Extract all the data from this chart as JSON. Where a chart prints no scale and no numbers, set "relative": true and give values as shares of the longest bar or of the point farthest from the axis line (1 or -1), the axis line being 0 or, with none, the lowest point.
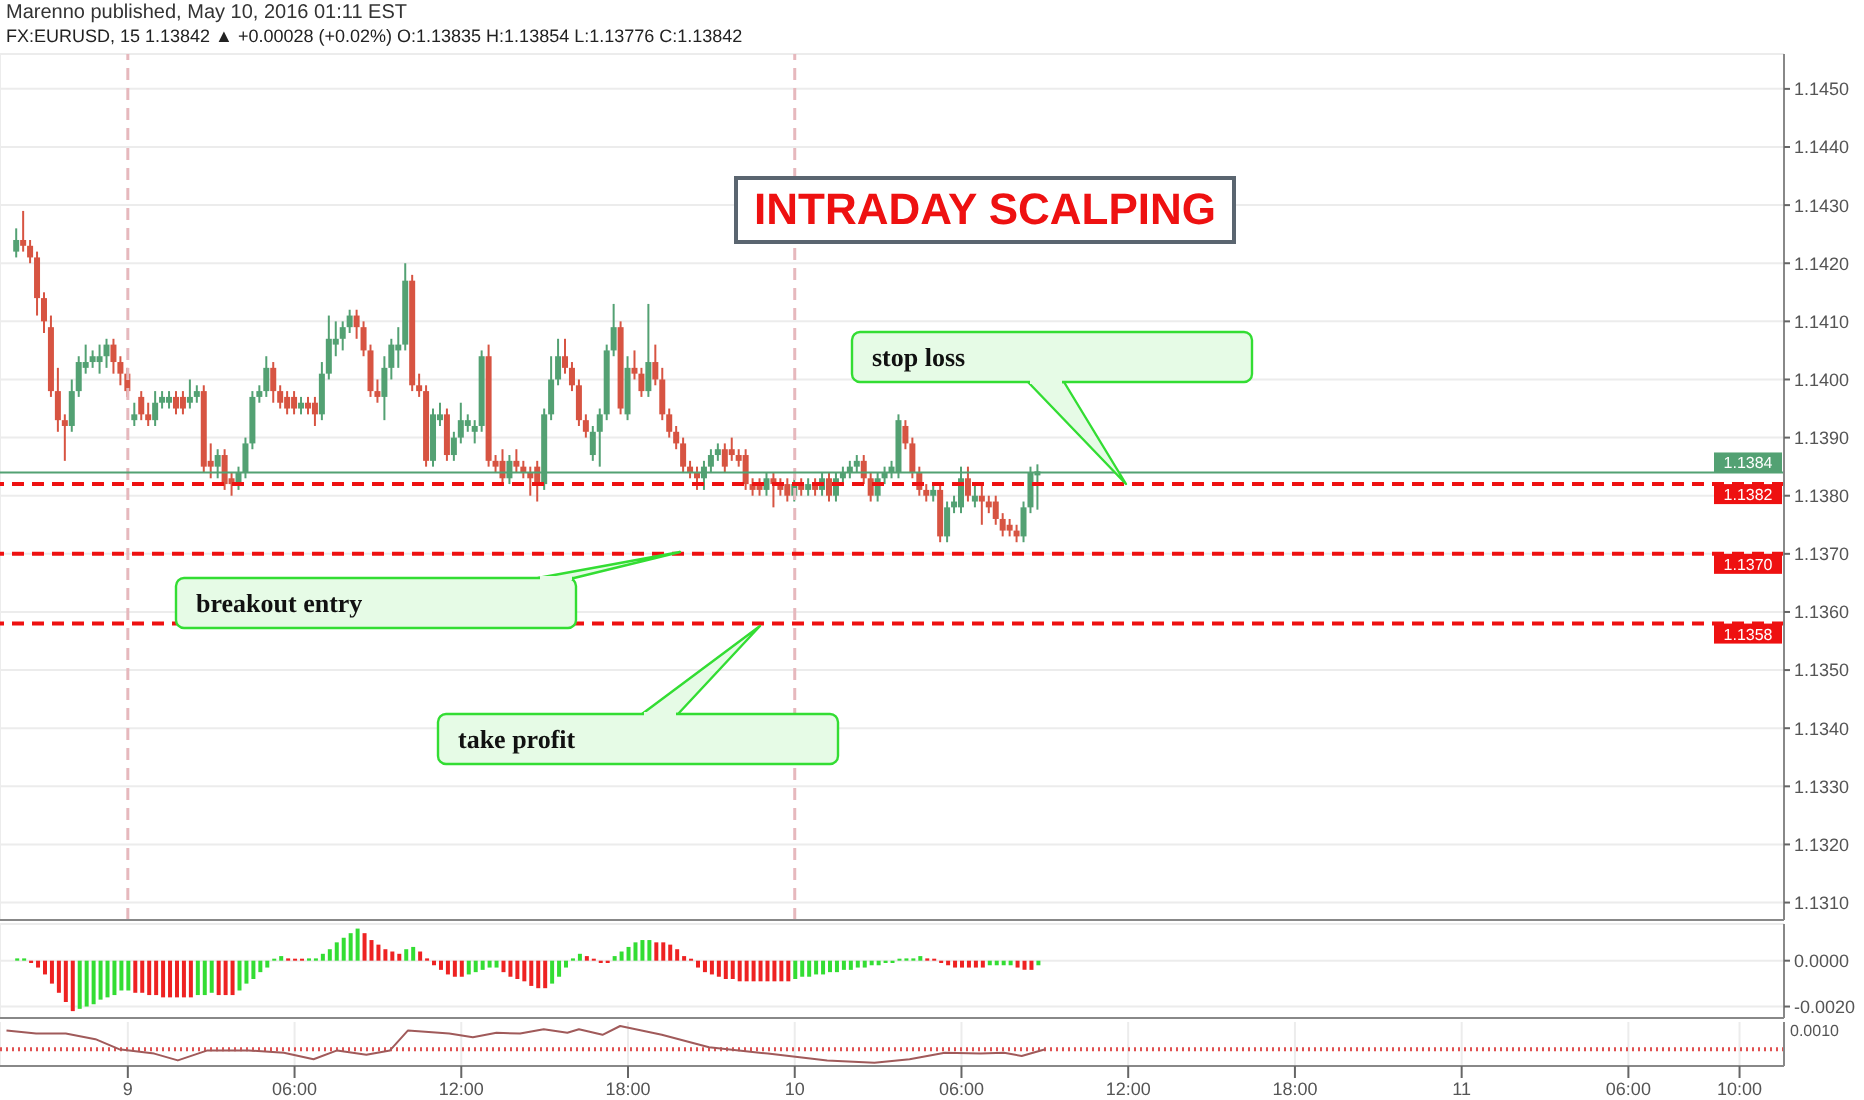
{
  "chart_data": [
    {
      "type": "candlestick",
      "title": "INTRADAY SCALPING",
      "subtitle": "FX:EURUSD, 15 1.13842 ▲ +0.00028 (+0.02%) O:1.13835 H:1.13854 L:1.13776 C:1.13842",
      "annotations": [
        "Marenno published, May 10, 2016 01:11 EST",
        "stop loss",
        "breakout entry",
        "take profit"
      ],
      "x": [
        "2016-05-08T20:00",
        "2016-05-08T20:15",
        "2016-05-08T20:30",
        "2016-05-08T20:45",
        "2016-05-08T21:00",
        "2016-05-08T21:15",
        "2016-05-08T21:30",
        "2016-05-08T21:45",
        "2016-05-08T22:00",
        "2016-05-08T22:15",
        "2016-05-08T22:30",
        "2016-05-08T22:45",
        "2016-05-08T23:00",
        "2016-05-08T23:15",
        "2016-05-08T23:30",
        "2016-05-08T23:45",
        "2016-05-09T00:00",
        "2016-05-09T00:15",
        "2016-05-09T00:30",
        "2016-05-09T00:45",
        "2016-05-09T01:00",
        "2016-05-09T01:15",
        "2016-05-09T01:30",
        "2016-05-09T01:45",
        "2016-05-09T02:00",
        "2016-05-09T02:15",
        "2016-05-09T02:30",
        "2016-05-09T02:45",
        "2016-05-09T03:00",
        "2016-05-09T03:15",
        "2016-05-09T03:30",
        "2016-05-09T03:45",
        "2016-05-09T04:00",
        "2016-05-09T04:15",
        "2016-05-09T04:30",
        "2016-05-09T04:45",
        "2016-05-09T05:00",
        "2016-05-09T05:15",
        "2016-05-09T05:30",
        "2016-05-09T05:45",
        "2016-05-09T06:00",
        "2016-05-09T06:15",
        "2016-05-09T06:30",
        "2016-05-09T06:45",
        "2016-05-09T07:00",
        "2016-05-09T07:15",
        "2016-05-09T07:30",
        "2016-05-09T07:45",
        "2016-05-09T08:00",
        "2016-05-09T08:15",
        "2016-05-09T08:30",
        "2016-05-09T08:45",
        "2016-05-09T09:00",
        "2016-05-09T09:15",
        "2016-05-09T09:30",
        "2016-05-09T09:45",
        "2016-05-09T10:00",
        "2016-05-09T10:15",
        "2016-05-09T10:30",
        "2016-05-09T10:45",
        "2016-05-09T11:00",
        "2016-05-09T11:15",
        "2016-05-09T11:30",
        "2016-05-09T11:45",
        "2016-05-09T12:00",
        "2016-05-09T12:15",
        "2016-05-09T12:30",
        "2016-05-09T12:45",
        "2016-05-09T13:00",
        "2016-05-09T13:15",
        "2016-05-09T13:30",
        "2016-05-09T13:45",
        "2016-05-09T14:00",
        "2016-05-09T14:15",
        "2016-05-09T14:30",
        "2016-05-09T14:45",
        "2016-05-09T15:00",
        "2016-05-09T15:15",
        "2016-05-09T15:30",
        "2016-05-09T15:45",
        "2016-05-09T16:00",
        "2016-05-09T16:15",
        "2016-05-09T16:30",
        "2016-05-09T16:45",
        "2016-05-09T17:00",
        "2016-05-09T17:15",
        "2016-05-09T17:30",
        "2016-05-09T17:45",
        "2016-05-09T18:00",
        "2016-05-09T18:15",
        "2016-05-09T18:30",
        "2016-05-09T18:45",
        "2016-05-09T19:00",
        "2016-05-09T19:15",
        "2016-05-09T19:30",
        "2016-05-09T19:45",
        "2016-05-09T20:00",
        "2016-05-09T20:15",
        "2016-05-09T20:30",
        "2016-05-09T20:45",
        "2016-05-09T21:00",
        "2016-05-09T21:15",
        "2016-05-09T21:30",
        "2016-05-09T21:45",
        "2016-05-09T22:00",
        "2016-05-09T22:15",
        "2016-05-09T22:30",
        "2016-05-09T22:45",
        "2016-05-09T23:00",
        "2016-05-09T23:15",
        "2016-05-09T23:30",
        "2016-05-09T23:45",
        "2016-05-10T00:00",
        "2016-05-10T00:15",
        "2016-05-10T00:30",
        "2016-05-10T00:45",
        "2016-05-10T01:00",
        "2016-05-10T01:15",
        "2016-05-10T01:30",
        "2016-05-10T01:45",
        "2016-05-10T02:00",
        "2016-05-10T02:15",
        "2016-05-10T02:30",
        "2016-05-10T02:45",
        "2016-05-10T03:00",
        "2016-05-10T03:15",
        "2016-05-10T03:30",
        "2016-05-10T03:45",
        "2016-05-10T04:00",
        "2016-05-10T04:15",
        "2016-05-10T04:30",
        "2016-05-10T04:45",
        "2016-05-10T05:00",
        "2016-05-10T05:15",
        "2016-05-10T05:30",
        "2016-05-10T05:45",
        "2016-05-10T06:00",
        "2016-05-10T06:15",
        "2016-05-10T06:30",
        "2016-05-10T06:45",
        "2016-05-10T07:00",
        "2016-05-10T07:15",
        "2016-05-10T07:30",
        "2016-05-10T07:45",
        "2016-05-10T08:00",
        "2016-05-10T08:15",
        "2016-05-10T08:30",
        "2016-05-10T08:45"
      ],
      "ohlc": [
        [
          1.1422,
          1.1426,
          1.1421,
          1.1424
        ],
        [
          1.1424,
          1.1429,
          1.1422,
          1.1423
        ],
        [
          1.1423,
          1.1424,
          1.142,
          1.1421
        ],
        [
          1.1421,
          1.1422,
          1.1411,
          1.1414
        ],
        [
          1.1414,
          1.1415,
          1.1408,
          1.141
        ],
        [
          1.1409,
          1.1411,
          1.1397,
          1.1398
        ],
        [
          1.1398,
          1.1402,
          1.1391,
          1.1393
        ],
        [
          1.1393,
          1.1394,
          1.1386,
          1.1392
        ],
        [
          1.1392,
          1.14,
          1.1391,
          1.1398
        ],
        [
          1.1398,
          1.1404,
          1.1397,
          1.1403
        ],
        [
          1.1402,
          1.1406,
          1.1401,
          1.1403
        ],
        [
          1.1403,
          1.1405,
          1.1402,
          1.1404
        ],
        [
          1.1403,
          1.1406,
          1.1401,
          1.1404
        ],
        [
          1.1404,
          1.1407,
          1.1402,
          1.1406
        ],
        [
          1.1406,
          1.1407,
          1.1401,
          1.1403
        ],
        [
          1.1403,
          1.1404,
          1.1399,
          1.1401
        ],
        [
          1.1401,
          1.1402,
          1.1397,
          1.1398
        ],
        [
          1.1393,
          1.1396,
          1.1392,
          1.1394
        ],
        [
          1.1397,
          1.1398,
          1.1393,
          1.1394
        ],
        [
          1.1394,
          1.1396,
          1.1392,
          1.1393
        ],
        [
          1.1393,
          1.1398,
          1.1392,
          1.1396
        ],
        [
          1.1396,
          1.1398,
          1.1395,
          1.1397
        ],
        [
          1.1396,
          1.1398,
          1.1395,
          1.1397
        ],
        [
          1.1397,
          1.1398,
          1.1394,
          1.1395
        ],
        [
          1.1397,
          1.1398,
          1.1394,
          1.1395
        ],
        [
          1.1396,
          1.14,
          1.1395,
          1.1397
        ],
        [
          1.1397,
          1.1399,
          1.1396,
          1.1398
        ],
        [
          1.1398,
          1.1399,
          1.1384,
          1.1385
        ],
        [
          1.1386,
          1.1389,
          1.1383,
          1.1385
        ],
        [
          1.1385,
          1.1388,
          1.1383,
          1.1387
        ],
        [
          1.1387,
          1.1388,
          1.1381,
          1.1382
        ],
        [
          1.1383,
          1.1384,
          1.138,
          1.1382
        ],
        [
          1.1382,
          1.1385,
          1.1381,
          1.1384
        ],
        [
          1.1384,
          1.139,
          1.1383,
          1.1389
        ],
        [
          1.1389,
          1.1398,
          1.1388,
          1.1397
        ],
        [
          1.1397,
          1.1399,
          1.1396,
          1.1398
        ],
        [
          1.1398,
          1.1404,
          1.1397,
          1.1402
        ],
        [
          1.1402,
          1.1403,
          1.1396,
          1.1398
        ],
        [
          1.1398,
          1.1399,
          1.1395,
          1.1396
        ],
        [
          1.1397,
          1.1398,
          1.1394,
          1.1395
        ],
        [
          1.1397,
          1.1398,
          1.1394,
          1.1395
        ],
        [
          1.1395,
          1.1397,
          1.1394,
          1.1396
        ],
        [
          1.1396,
          1.1397,
          1.1394,
          1.1395
        ],
        [
          1.1396,
          1.1397,
          1.1392,
          1.1394
        ],
        [
          1.1394,
          1.1403,
          1.1393,
          1.1401
        ],
        [
          1.1401,
          1.1411,
          1.14,
          1.1407
        ],
        [
          1.1406,
          1.141,
          1.1404,
          1.1407
        ],
        [
          1.1407,
          1.141,
          1.1405,
          1.1409
        ],
        [
          1.1409,
          1.1412,
          1.1408,
          1.1411
        ],
        [
          1.1411,
          1.1412,
          1.1407,
          1.1409
        ],
        [
          1.1409,
          1.141,
          1.1404,
          1.1405
        ],
        [
          1.1405,
          1.1406,
          1.1397,
          1.1398
        ],
        [
          1.1398,
          1.14,
          1.1396,
          1.1397
        ],
        [
          1.1397,
          1.1404,
          1.1393,
          1.1402
        ],
        [
          1.1402,
          1.1407,
          1.14,
          1.1406
        ],
        [
          1.1405,
          1.1409,
          1.1402,
          1.1406
        ],
        [
          1.1406,
          1.142,
          1.1405,
          1.1417
        ],
        [
          1.1417,
          1.1418,
          1.1398,
          1.1399
        ],
        [
          1.1399,
          1.1401,
          1.1397,
          1.1398
        ],
        [
          1.1398,
          1.1399,
          1.1385,
          1.1386
        ],
        [
          1.1386,
          1.1395,
          1.1385,
          1.1394
        ],
        [
          1.1393,
          1.1396,
          1.1392,
          1.1394
        ],
        [
          1.1394,
          1.1395,
          1.1386,
          1.1387
        ],
        [
          1.1387,
          1.1391,
          1.1386,
          1.139
        ],
        [
          1.139,
          1.1396,
          1.1389,
          1.1393
        ],
        [
          1.1392,
          1.1394,
          1.1391,
          1.1393
        ],
        [
          1.1391,
          1.1393,
          1.1389,
          1.1392
        ],
        [
          1.1392,
          1.1405,
          1.1391,
          1.1404
        ],
        [
          1.1404,
          1.1406,
          1.1385,
          1.1386
        ],
        [
          1.1386,
          1.1387,
          1.1384,
          1.1385
        ],
        [
          1.1386,
          1.1388,
          1.1382,
          1.1383
        ],
        [
          1.1383,
          1.1387,
          1.1382,
          1.1386
        ],
        [
          1.1386,
          1.1388,
          1.1384,
          1.1385
        ],
        [
          1.1385,
          1.1386,
          1.1383,
          1.1384
        ],
        [
          1.1384,
          1.1385,
          1.138,
          1.1383
        ],
        [
          1.1385,
          1.1386,
          1.1379,
          1.1382
        ],
        [
          1.1382,
          1.1395,
          1.1381,
          1.1394
        ],
        [
          1.1394,
          1.1404,
          1.1393,
          1.14
        ],
        [
          1.14,
          1.1407,
          1.1399,
          1.1404
        ],
        [
          1.1404,
          1.1407,
          1.1401,
          1.1402
        ],
        [
          1.1402,
          1.1403,
          1.1398,
          1.1399
        ],
        [
          1.1399,
          1.14,
          1.1392,
          1.1393
        ],
        [
          1.1393,
          1.1394,
          1.139,
          1.1391
        ],
        [
          1.1387,
          1.1392,
          1.1386,
          1.1391
        ],
        [
          1.1391,
          1.1395,
          1.1385,
          1.1394
        ],
        [
          1.1394,
          1.1406,
          1.1393,
          1.1405
        ],
        [
          1.1405,
          1.1413,
          1.1404,
          1.1409
        ],
        [
          1.1409,
          1.141,
          1.1394,
          1.1395
        ],
        [
          1.1394,
          1.1404,
          1.1393,
          1.1402
        ],
        [
          1.1402,
          1.1405,
          1.14,
          1.1401
        ],
        [
          1.1401,
          1.1402,
          1.1397,
          1.1398
        ],
        [
          1.1398,
          1.1413,
          1.1397,
          1.1403
        ],
        [
          1.1403,
          1.1406,
          1.1399,
          1.14
        ],
        [
          1.14,
          1.1402,
          1.1393,
          1.1394
        ],
        [
          1.1394,
          1.1395,
          1.139,
          1.1391
        ],
        [
          1.1391,
          1.1392,
          1.1388,
          1.1389
        ],
        [
          1.1389,
          1.139,
          1.1384,
          1.1385
        ],
        [
          1.1385,
          1.1386,
          1.1383,
          1.1384
        ],
        [
          1.1384,
          1.1385,
          1.1381,
          1.1383
        ],
        [
          1.1383,
          1.1386,
          1.1381,
          1.1385
        ],
        [
          1.1385,
          1.1388,
          1.1384,
          1.1387
        ],
        [
          1.1387,
          1.1389,
          1.1386,
          1.1388
        ],
        [
          1.1388,
          1.1389,
          1.1384,
          1.1385
        ],
        [
          1.1388,
          1.139,
          1.1386,
          1.1387
        ],
        [
          1.1387,
          1.1388,
          1.1385,
          1.1386
        ],
        [
          1.1387,
          1.1388,
          1.1381,
          1.1382
        ],
        [
          1.1382,
          1.1383,
          1.138,
          1.1381
        ],
        [
          1.1382,
          1.1383,
          1.138,
          1.1381
        ],
        [
          1.1381,
          1.1384,
          1.138,
          1.1383
        ],
        [
          1.1383,
          1.1384,
          1.1378,
          1.1382
        ],
        [
          1.1382,
          1.1383,
          1.138,
          1.1381
        ],
        [
          1.1382,
          1.1383,
          1.1379,
          1.138
        ],
        [
          1.138,
          1.1383,
          1.1379,
          1.1382
        ],
        [
          1.1382,
          1.1383,
          1.138,
          1.1381
        ],
        [
          1.1381,
          1.1383,
          1.138,
          1.1382
        ],
        [
          1.1382,
          1.1383,
          1.138,
          1.1381
        ],
        [
          1.1381,
          1.1384,
          1.138,
          1.1383
        ],
        [
          1.1383,
          1.1384,
          1.1379,
          1.138
        ],
        [
          1.138,
          1.1384,
          1.1379,
          1.1383
        ],
        [
          1.1383,
          1.1385,
          1.1382,
          1.1384
        ],
        [
          1.1384,
          1.1386,
          1.1383,
          1.1385
        ],
        [
          1.1385,
          1.1387,
          1.1384,
          1.1386
        ],
        [
          1.1386,
          1.1387,
          1.1382,
          1.1383
        ],
        [
          1.1383,
          1.1384,
          1.1379,
          1.138
        ],
        [
          1.138,
          1.1384,
          1.1379,
          1.1383
        ],
        [
          1.1383,
          1.1385,
          1.1382,
          1.1384
        ],
        [
          1.1384,
          1.1386,
          1.1383,
          1.1385
        ],
        [
          1.1384,
          1.1394,
          1.1383,
          1.1393
        ],
        [
          1.1392,
          1.1393,
          1.1388,
          1.1389
        ],
        [
          1.1389,
          1.139,
          1.1383,
          1.1384
        ],
        [
          1.1384,
          1.1385,
          1.138,
          1.1381
        ],
        [
          1.1381,
          1.1382,
          1.1379,
          1.138
        ],
        [
          1.138,
          1.1382,
          1.1379,
          1.1381
        ],
        [
          1.1381,
          1.1382,
          1.1372,
          1.1373
        ],
        [
          1.1373,
          1.1379,
          1.1372,
          1.1378
        ],
        [
          1.1378,
          1.138,
          1.1377,
          1.1379
        ],
        [
          1.1378,
          1.1385,
          1.1377,
          1.1383
        ],
        [
          1.1383,
          1.1385,
          1.1379,
          1.138
        ],
        [
          1.1379,
          1.1382,
          1.1378,
          1.138
        ],
        [
          1.138,
          1.1382,
          1.1375,
          1.1379
        ],
        [
          1.1379,
          1.138,
          1.1377,
          1.1378
        ],
        [
          1.1379,
          1.138,
          1.1375,
          1.1376
        ],
        [
          1.1376,
          1.1377,
          1.1373,
          1.1374
        ],
        [
          1.1375,
          1.1376,
          1.1373,
          1.1374
        ],
        [
          1.1374,
          1.1375,
          1.1372,
          1.1373
        ],
        [
          1.1373,
          1.1379,
          1.1372,
          1.1378
        ],
        [
          1.1378,
          1.1385,
          1.1377,
          1.1384
        ],
        [
          1.13835,
          1.13854,
          1.13776,
          1.13842
        ]
      ],
      "xlim": [
        "2016-05-08T19:24",
        "2016-05-11T11:36"
      ],
      "xticks": [
        {
          "value": "2016-05-09T00:00",
          "label": null
        },
        {
          "value": "2016-05-09T06:00",
          "label": null
        },
        {
          "value": "2016-05-09T12:00",
          "label": null
        },
        {
          "value": "2016-05-09T18:00",
          "label": null
        },
        {
          "value": "2016-05-10T00:00",
          "label": null
        },
        {
          "value": "2016-05-10T06:00",
          "label": null
        },
        {
          "value": "2016-05-10T12:00",
          "label": null
        },
        {
          "value": "2016-05-10T18:00",
          "label": null
        },
        {
          "value": "2016-05-11T00:00",
          "label": null
        },
        {
          "value": "2016-05-11T06:00",
          "label": null
        },
        {
          "value": "2016-05-11T10:00",
          "label": null
        }
      ],
      "ylim": [
        1.1307,
        1.1456
      ],
      "yticks": [
        {
          "value": 1.131,
          "label": "1.1310"
        },
        {
          "value": 1.132,
          "label": "1.1320"
        },
        {
          "value": 1.133,
          "label": "1.1330"
        },
        {
          "value": 1.134,
          "label": "1.1340"
        },
        {
          "value": 1.135,
          "label": "1.1350"
        },
        {
          "value": 1.136,
          "label": "1.1360"
        },
        {
          "value": 1.137,
          "label": "1.1370"
        },
        {
          "value": 1.138,
          "label": "1.1380"
        },
        {
          "value": 1.139,
          "label": "1.1390"
        },
        {
          "value": 1.14,
          "label": "1.1400"
        },
        {
          "value": 1.141,
          "label": "1.1410"
        },
        {
          "value": 1.142,
          "label": "1.1420"
        },
        {
          "value": 1.143,
          "label": "1.1430"
        },
        {
          "value": 1.144,
          "label": "1.1440"
        },
        {
          "value": 1.145,
          "label": "1.1450"
        }
      ],
      "grid": true,
      "tick_labels": "y",
      "ref_lines": [
        {
          "axis": "x",
          "value": "2016-05-09T00:00",
          "color": "#e6b8bd",
          "line_style": "dashed"
        },
        {
          "axis": "x",
          "value": "2016-05-10T00:00",
          "color": "#e6b8bd",
          "line_style": "dashed"
        },
        {
          "axis": "y",
          "value": 1.1384,
          "label": "1.1384",
          "color": "#53a173",
          "line_style": "solid"
        },
        {
          "axis": "y",
          "value": 1.1382,
          "label": "1.1382",
          "color": "#ee1111",
          "line_style": "dashed"
        },
        {
          "axis": "y",
          "value": 1.137,
          "label": "1.1370",
          "color": "#ee1111",
          "line_style": "dashed"
        },
        {
          "axis": "y",
          "value": 1.1358,
          "label": "1.1358",
          "color": "#ee1111",
          "line_style": "dashed"
        }
      ]
    },
    {
      "type": "bar",
      "x": [
        "2016-05-08T20:00",
        "2016-05-08T20:15",
        "2016-05-08T20:30",
        "2016-05-08T20:45",
        "2016-05-08T21:00",
        "2016-05-08T21:15",
        "2016-05-08T21:30",
        "2016-05-08T21:45",
        "2016-05-08T22:00",
        "2016-05-08T22:15",
        "2016-05-08T22:30",
        "2016-05-08T22:45",
        "2016-05-08T23:00",
        "2016-05-08T23:15",
        "2016-05-08T23:30",
        "2016-05-08T23:45",
        "2016-05-09T00:00",
        "2016-05-09T00:15",
        "2016-05-09T00:30",
        "2016-05-09T00:45",
        "2016-05-09T01:00",
        "2016-05-09T01:15",
        "2016-05-09T01:30",
        "2016-05-09T01:45",
        "2016-05-09T02:00",
        "2016-05-09T02:15",
        "2016-05-09T02:30",
        "2016-05-09T02:45",
        "2016-05-09T03:00",
        "2016-05-09T03:15",
        "2016-05-09T03:30",
        "2016-05-09T03:45",
        "2016-05-09T04:00",
        "2016-05-09T04:15",
        "2016-05-09T04:30",
        "2016-05-09T04:45",
        "2016-05-09T05:00",
        "2016-05-09T05:15",
        "2016-05-09T05:30",
        "2016-05-09T05:45",
        "2016-05-09T06:00",
        "2016-05-09T06:15",
        "2016-05-09T06:30",
        "2016-05-09T06:45",
        "2016-05-09T07:00",
        "2016-05-09T07:15",
        "2016-05-09T07:30",
        "2016-05-09T07:45",
        "2016-05-09T08:00",
        "2016-05-09T08:15",
        "2016-05-09T08:30",
        "2016-05-09T08:45",
        "2016-05-09T09:00",
        "2016-05-09T09:15",
        "2016-05-09T09:30",
        "2016-05-09T09:45",
        "2016-05-09T10:00",
        "2016-05-09T10:15",
        "2016-05-09T10:30",
        "2016-05-09T10:45",
        "2016-05-09T11:00",
        "2016-05-09T11:15",
        "2016-05-09T11:30",
        "2016-05-09T11:45",
        "2016-05-09T12:00",
        "2016-05-09T12:15",
        "2016-05-09T12:30",
        "2016-05-09T12:45",
        "2016-05-09T13:00",
        "2016-05-09T13:15",
        "2016-05-09T13:30",
        "2016-05-09T13:45",
        "2016-05-09T14:00",
        "2016-05-09T14:15",
        "2016-05-09T14:30",
        "2016-05-09T14:45",
        "2016-05-09T15:00",
        "2016-05-09T15:15",
        "2016-05-09T15:30",
        "2016-05-09T15:45",
        "2016-05-09T16:00",
        "2016-05-09T16:15",
        "2016-05-09T16:30",
        "2016-05-09T16:45",
        "2016-05-09T17:00",
        "2016-05-09T17:15",
        "2016-05-09T17:30",
        "2016-05-09T17:45",
        "2016-05-09T18:00",
        "2016-05-09T18:15",
        "2016-05-09T18:30",
        "2016-05-09T18:45",
        "2016-05-09T19:00",
        "2016-05-09T19:15",
        "2016-05-09T19:30",
        "2016-05-09T19:45",
        "2016-05-09T20:00",
        "2016-05-09T20:15",
        "2016-05-09T20:30",
        "2016-05-09T20:45",
        "2016-05-09T21:00",
        "2016-05-09T21:15",
        "2016-05-09T21:30",
        "2016-05-09T21:45",
        "2016-05-09T22:00",
        "2016-05-09T22:15",
        "2016-05-09T22:30",
        "2016-05-09T22:45",
        "2016-05-09T23:00",
        "2016-05-09T23:15",
        "2016-05-09T23:30",
        "2016-05-09T23:45",
        "2016-05-10T00:00",
        "2016-05-10T00:15",
        "2016-05-10T00:30",
        "2016-05-10T00:45",
        "2016-05-10T01:00",
        "2016-05-10T01:15",
        "2016-05-10T01:30",
        "2016-05-10T01:45",
        "2016-05-10T02:00",
        "2016-05-10T02:15",
        "2016-05-10T02:30",
        "2016-05-10T02:45",
        "2016-05-10T03:00",
        "2016-05-10T03:15",
        "2016-05-10T03:30",
        "2016-05-10T03:45",
        "2016-05-10T04:00",
        "2016-05-10T04:15",
        "2016-05-10T04:30",
        "2016-05-10T04:45",
        "2016-05-10T05:00",
        "2016-05-10T05:15",
        "2016-05-10T05:30",
        "2016-05-10T05:45",
        "2016-05-10T06:00",
        "2016-05-10T06:15",
        "2016-05-10T06:30",
        "2016-05-10T06:45",
        "2016-05-10T07:00",
        "2016-05-10T07:15",
        "2016-05-10T07:30",
        "2016-05-10T07:45",
        "2016-05-10T08:00",
        "2016-05-10T08:15",
        "2016-05-10T08:30",
        "2016-05-10T08:45"
      ],
      "values": [
        0.0001,
        0.0001,
        -0.0001,
        -0.0003,
        -0.0006,
        -0.001,
        -0.0014,
        -0.0018,
        -0.0022,
        -0.0021,
        -0.002,
        -0.0019,
        -0.0017,
        -0.0016,
        -0.0015,
        -0.0013,
        -0.0013,
        -0.0014,
        -0.0014,
        -0.0015,
        -0.0015,
        -0.0016,
        -0.0016,
        -0.0016,
        -0.0016,
        -0.0016,
        -0.0015,
        -0.0015,
        -0.0014,
        -0.0015,
        -0.0015,
        -0.0015,
        -0.0013,
        -0.001,
        -0.0008,
        -0.0005,
        -0.0003,
        0,
        0.0002,
        0.0001,
        0,
        0,
        0.0001,
        0.0001,
        0.0003,
        0.0005,
        0.0008,
        0.001,
        0.0012,
        0.0014,
        0.0012,
        0.0009,
        0.0007,
        0.0005,
        0.0004,
        0.0003,
        0.0005,
        0.0006,
        0.0004,
        0.0001,
        -0.0002,
        -0.0004,
        -0.0006,
        -0.0007,
        -0.0007,
        -0.0006,
        -0.0005,
        -0.0004,
        -0.0003,
        -0.0003,
        -0.0005,
        -0.0007,
        -0.0008,
        -0.0009,
        -0.0011,
        -0.0012,
        -0.0012,
        -0.001,
        -0.0007,
        -0.0003,
        0.0001,
        0.0003,
        0.0002,
        0,
        -0.0001,
        -0.0001,
        0.0002,
        0.0004,
        0.0006,
        0.0008,
        0.0009,
        0.0009,
        0.0008,
        0.0008,
        0.0007,
        0.0005,
        0.0002,
        0,
        -0.0003,
        -0.0005,
        -0.0006,
        -0.0007,
        -0.0008,
        -0.0008,
        -0.0009,
        -0.0009,
        -0.0009,
        -0.0009,
        -0.0009,
        -0.0009,
        -0.0009,
        -0.0009,
        -0.0008,
        -0.0007,
        -0.0007,
        -0.0006,
        -0.0006,
        -0.0005,
        -0.0005,
        -0.0004,
        -0.0004,
        -0.0003,
        -0.0003,
        -0.0002,
        -0.0002,
        -0.0001,
        -0.0001,
        0,
        0.0001,
        0.0001,
        0.0002,
        0.0001,
        0,
        -0.0001,
        -0.0002,
        -0.0003,
        -0.0003,
        -0.0003,
        -0.0003,
        -0.0003,
        -0.0002,
        -0.0002,
        -0.0002,
        -0.0002,
        -0.0003,
        -0.0004,
        -0.0004,
        -0.0002
      ],
      "colors": [
        "#33dd33",
        "#33dd33",
        "#ee2222",
        "#ee2222",
        "#ee2222",
        "#ee2222",
        "#ee2222",
        "#ee2222",
        "#ee2222",
        "#33dd33",
        "#33dd33",
        "#33dd33",
        "#33dd33",
        "#33dd33",
        "#33dd33",
        "#33dd33",
        "#33dd33",
        "#ee2222",
        "#ee2222",
        "#ee2222",
        "#ee2222",
        "#ee2222",
        "#ee2222",
        "#ee2222",
        "#ee2222",
        "#ee2222",
        "#33dd33",
        "#33dd33",
        "#33dd33",
        "#ee2222",
        "#ee2222",
        "#ee2222",
        "#33dd33",
        "#33dd33",
        "#33dd33",
        "#33dd33",
        "#33dd33",
        "#33dd33",
        "#33dd33",
        "#ee2222",
        "#ee2222",
        "#ee2222",
        "#33dd33",
        "#33dd33",
        "#33dd33",
        "#33dd33",
        "#33dd33",
        "#33dd33",
        "#33dd33",
        "#33dd33",
        "#ee2222",
        "#ee2222",
        "#ee2222",
        "#ee2222",
        "#ee2222",
        "#ee2222",
        "#33dd33",
        "#33dd33",
        "#ee2222",
        "#ee2222",
        "#ee2222",
        "#ee2222",
        "#ee2222",
        "#ee2222",
        "#ee2222",
        "#33dd33",
        "#33dd33",
        "#33dd33",
        "#33dd33",
        "#33dd33",
        "#ee2222",
        "#ee2222",
        "#ee2222",
        "#ee2222",
        "#ee2222",
        "#ee2222",
        "#ee2222",
        "#33dd33",
        "#33dd33",
        "#33dd33",
        "#33dd33",
        "#33dd33",
        "#ee2222",
        "#ee2222",
        "#ee2222",
        "#ee2222",
        "#33dd33",
        "#33dd33",
        "#33dd33",
        "#33dd33",
        "#33dd33",
        "#33dd33",
        "#ee2222",
        "#ee2222",
        "#ee2222",
        "#ee2222",
        "#ee2222",
        "#ee2222",
        "#ee2222",
        "#ee2222",
        "#ee2222",
        "#ee2222",
        "#ee2222",
        "#ee2222",
        "#ee2222",
        "#ee2222",
        "#ee2222",
        "#ee2222",
        "#ee2222",
        "#ee2222",
        "#ee2222",
        "#ee2222",
        "#33dd33",
        "#33dd33",
        "#33dd33",
        "#33dd33",
        "#33dd33",
        "#33dd33",
        "#33dd33",
        "#33dd33",
        "#33dd33",
        "#33dd33",
        "#33dd33",
        "#33dd33",
        "#33dd33",
        "#33dd33",
        "#33dd33",
        "#33dd33",
        "#33dd33",
        "#33dd33",
        "#33dd33",
        "#ee2222",
        "#ee2222",
        "#ee2222",
        "#ee2222",
        "#ee2222",
        "#ee2222",
        "#ee2222",
        "#ee2222",
        "#ee2222",
        "#33dd33",
        "#33dd33",
        "#33dd33",
        "#33dd33",
        "#ee2222",
        "#ee2222",
        "#ee2222",
        "#33dd33"
      ],
      "xlim": [
        "2016-05-08T19:24",
        "2016-05-11T11:36"
      ],
      "xticks": [
        {
          "value": "2016-05-09T00:00",
          "label": null
        },
        {
          "value": "2016-05-09T06:00",
          "label": null
        },
        {
          "value": "2016-05-09T12:00",
          "label": null
        },
        {
          "value": "2016-05-09T18:00",
          "label": null
        },
        {
          "value": "2016-05-10T00:00",
          "label": null
        },
        {
          "value": "2016-05-10T06:00",
          "label": null
        },
        {
          "value": "2016-05-10T12:00",
          "label": null
        },
        {
          "value": "2016-05-10T18:00",
          "label": null
        },
        {
          "value": "2016-05-11T00:00",
          "label": null
        },
        {
          "value": "2016-05-11T06:00",
          "label": null
        },
        {
          "value": "2016-05-11T10:00",
          "label": null
        }
      ],
      "ylim": [
        -0.0025,
        0.0016
      ],
      "yticks": [
        {
          "value": -0.002,
          "label": "-0.0020"
        },
        {
          "value": 0,
          "label": "0.0000"
        }
      ],
      "grid": true,
      "tick_labels": "y"
    },
    {
      "type": "line",
      "relative": true,
      "color": "#a05a5a",
      "marker": "none",
      "grid": "x",
      "tick_labels": "x",
      "x": [
        "2016-05-08T19:38",
        "2016-05-08T20:42",
        "2016-05-08T21:46",
        "2016-05-08T22:50",
        "2016-05-08T23:41",
        "2016-05-09T00:57",
        "2016-05-09T01:48",
        "2016-05-09T02:52",
        "2016-05-09T04:21",
        "2016-05-09T05:37",
        "2016-05-09T06:41",
        "2016-05-09T07:32",
        "2016-05-09T08:35",
        "2016-05-09T09:26",
        "2016-05-09T10:05",
        "2016-05-09T11:34",
        "2016-05-09T12:25",
        "2016-05-09T13:16",
        "2016-05-09T14:07",
        "2016-05-09T14:58",
        "2016-05-09T15:49",
        "2016-05-09T16:14",
        "2016-05-09T17:05",
        "2016-05-09T17:43",
        "2016-05-09T19:13",
        "2016-05-09T20:55",
        "2016-05-09T23:02",
        "2016-05-10T01:10",
        "2016-05-10T02:52",
        "2016-05-10T04:08",
        "2016-05-10T05:24",
        "2016-05-10T06:41",
        "2016-05-10T07:32",
        "2016-05-10T08:10",
        "2016-05-10T09:01"
      ],
      "values": [
        0.89,
        0.81,
        0.81,
        0.67,
        0.42,
        0.31,
        0.14,
        0.39,
        0.39,
        0.33,
        0.17,
        0.39,
        0.28,
        0.39,
        0.89,
        0.81,
        0.72,
        0.83,
        0.81,
        0.92,
        0.83,
        0.92,
        0.78,
        1,
        0.78,
        0.47,
        0.31,
        0.14,
        0.08,
        0.17,
        0.33,
        0.31,
        0.33,
        0.25,
        0.42
      ],
      "xlim": [
        "2016-05-08T19:24",
        "2016-05-11T11:36"
      ],
      "xticks": [
        {
          "value": "2016-05-09T00:00",
          "label": "9"
        },
        {
          "value": "2016-05-09T06:00",
          "label": "06:00"
        },
        {
          "value": "2016-05-09T12:00",
          "label": "12:00"
        },
        {
          "value": "2016-05-09T18:00",
          "label": "18:00"
        },
        {
          "value": "2016-05-10T00:00",
          "label": "10"
        },
        {
          "value": "2016-05-10T06:00",
          "label": "06:00"
        },
        {
          "value": "2016-05-10T12:00",
          "label": "12:00"
        },
        {
          "value": "2016-05-10T18:00",
          "label": "18:00"
        },
        {
          "value": "2016-05-11T00:00",
          "label": "11"
        },
        {
          "value": "2016-05-11T06:00",
          "label": "06:00"
        },
        {
          "value": "2016-05-11T10:00",
          "label": "10:00"
        }
      ],
      "ref_lines": [
        {
          "axis": "y",
          "value": 0.42,
          "color": "#e05050",
          "line_style": "dotted"
        }
      ],
      "annotations": [
        "0.0010"
      ]
    }
  ]
}
